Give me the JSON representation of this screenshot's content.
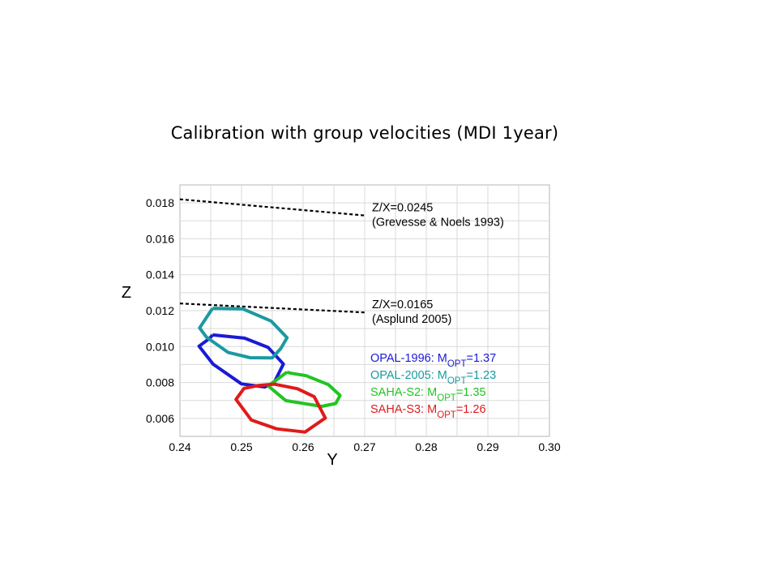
{
  "slide": {
    "title": "Calibration with group velocities (MDI 1year)"
  },
  "chart_data": {
    "type": "line",
    "xlabel": "Y",
    "ylabel": "Z",
    "xlim": [
      0.24,
      0.3
    ],
    "ylim": [
      0.005,
      0.019
    ],
    "grid": true,
    "x_ticks": [
      "0.24",
      "0.25",
      "0.26",
      "0.27",
      "0.28",
      "0.29",
      "0.30"
    ],
    "y_ticks": [
      "0.006",
      "0.008",
      "0.010",
      "0.012",
      "0.014",
      "0.016",
      "0.018"
    ],
    "y_tick_values": [
      0.006,
      0.008,
      0.01,
      0.012,
      0.014,
      0.016,
      0.018
    ],
    "x_tick_values": [
      0.24,
      0.25,
      0.26,
      0.27,
      0.28,
      0.29,
      0.3
    ],
    "reference_lines": [
      {
        "label": "Z/X=0.0245",
        "note": "(Grevesse & Noels 1993)",
        "color": "#000000",
        "x": [
          0.24,
          0.27
        ],
        "y": [
          0.0182,
          0.0173
        ]
      },
      {
        "label": "Z/X=0.0165",
        "note": "(Asplund 2005)",
        "color": "#000000",
        "x": [
          0.24,
          0.27
        ],
        "y": [
          0.0124,
          0.0119
        ]
      }
    ],
    "series": [
      {
        "name": "OPAL-1996: M",
        "sub": "OPT",
        "value": "=1.37",
        "color": "#1a1ad6",
        "x": [
          0.2453,
          0.2505,
          0.2543,
          0.2568,
          0.2553,
          0.2538,
          0.25,
          0.2454,
          0.2431,
          0.2448,
          0.2453
        ],
        "y": [
          0.01065,
          0.01047,
          0.00996,
          0.00903,
          0.008,
          0.00775,
          0.00792,
          0.00902,
          0.01002,
          0.01045,
          0.01065
        ]
      },
      {
        "name": "OPAL-2005: M",
        "sub": "OPT",
        "value": "=1.23",
        "color": "#1a9aa0",
        "x": [
          0.2453,
          0.2502,
          0.2548,
          0.2574,
          0.2564,
          0.255,
          0.2514,
          0.2478,
          0.2443,
          0.2432,
          0.2453
        ],
        "y": [
          0.01213,
          0.0121,
          0.01142,
          0.01049,
          0.0099,
          0.00937,
          0.00938,
          0.00968,
          0.01053,
          0.01104,
          0.01213
        ]
      },
      {
        "name": "SAHA-S2: M",
        "sub": "OPT",
        "value": "=1.35",
        "color": "#22c422",
        "x": [
          0.2574,
          0.2578,
          0.2605,
          0.2641,
          0.266,
          0.2653,
          0.263,
          0.2572,
          0.2543,
          0.2556,
          0.2574
        ],
        "y": [
          0.00858,
          0.00853,
          0.00838,
          0.00788,
          0.00728,
          0.00683,
          0.00667,
          0.00699,
          0.00782,
          0.00812,
          0.00858
        ]
      },
      {
        "name": "SAHA-S3: M",
        "sub": "OPT",
        "value": "=1.26",
        "color": "#e01a1a",
        "x": [
          0.2527,
          0.2553,
          0.2591,
          0.2618,
          0.2636,
          0.2603,
          0.2557,
          0.2516,
          0.2491,
          0.2504,
          0.2527
        ],
        "y": [
          0.00783,
          0.00791,
          0.00765,
          0.00721,
          0.00602,
          0.00524,
          0.00542,
          0.00591,
          0.00706,
          0.00767,
          0.00783
        ]
      }
    ]
  }
}
